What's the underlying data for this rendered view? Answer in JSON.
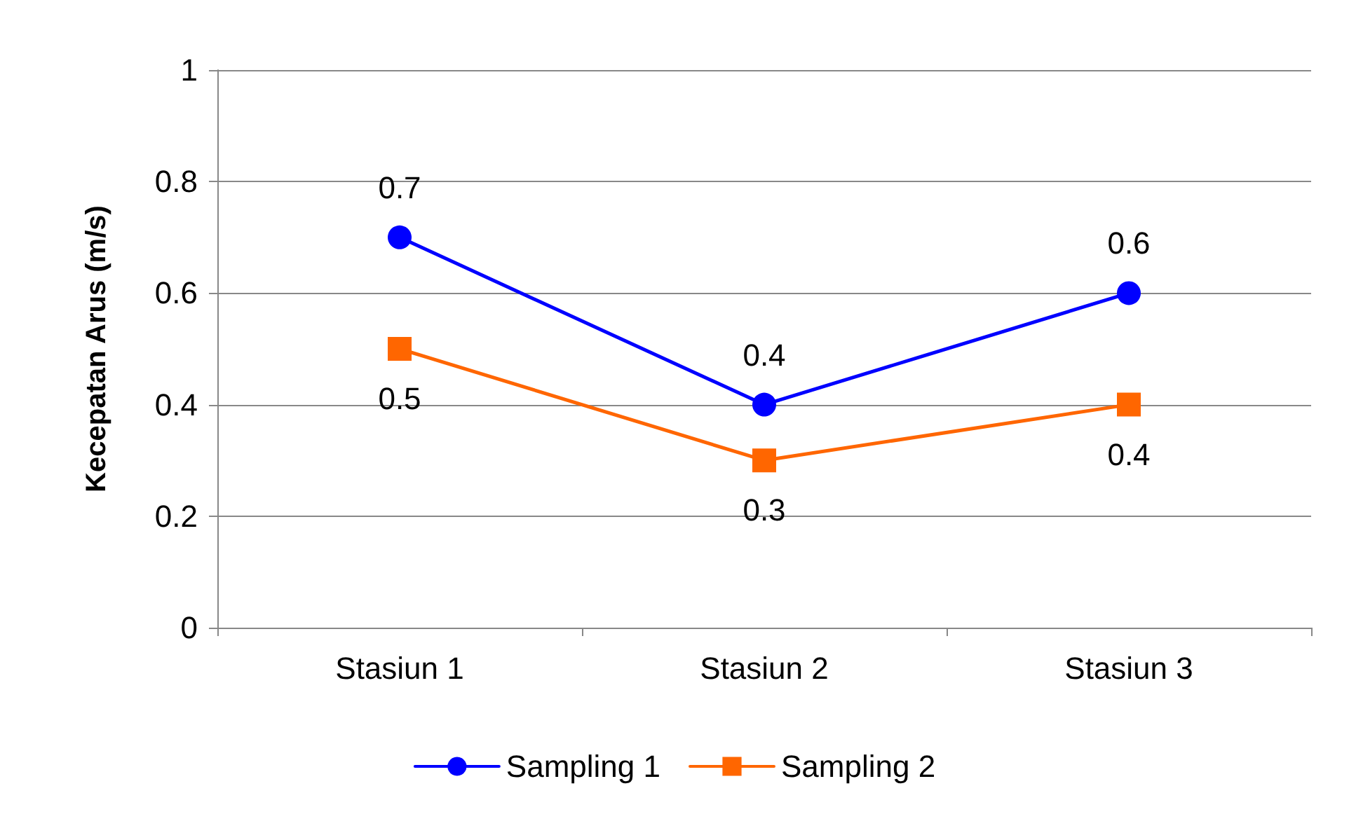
{
  "chart_data": {
    "type": "line",
    "ylabel": "Kecepatan Arus (m/s)",
    "categories": [
      "Stasiun 1",
      "Stasiun 2",
      "Stasiun 3"
    ],
    "series": [
      {
        "name": "Sampling 1",
        "color": "#0000ff",
        "marker": "circle",
        "values": [
          0.7,
          0.4,
          0.6
        ]
      },
      {
        "name": "Sampling 2",
        "color": "#ff6600",
        "marker": "square",
        "values": [
          0.5,
          0.3,
          0.4
        ]
      }
    ],
    "ylim": [
      0,
      1
    ],
    "yticks": [
      0,
      0.2,
      0.4,
      0.6,
      0.8,
      1
    ],
    "grid": "y",
    "legend": "bottom",
    "data_labels": true,
    "line_style": "solid"
  }
}
